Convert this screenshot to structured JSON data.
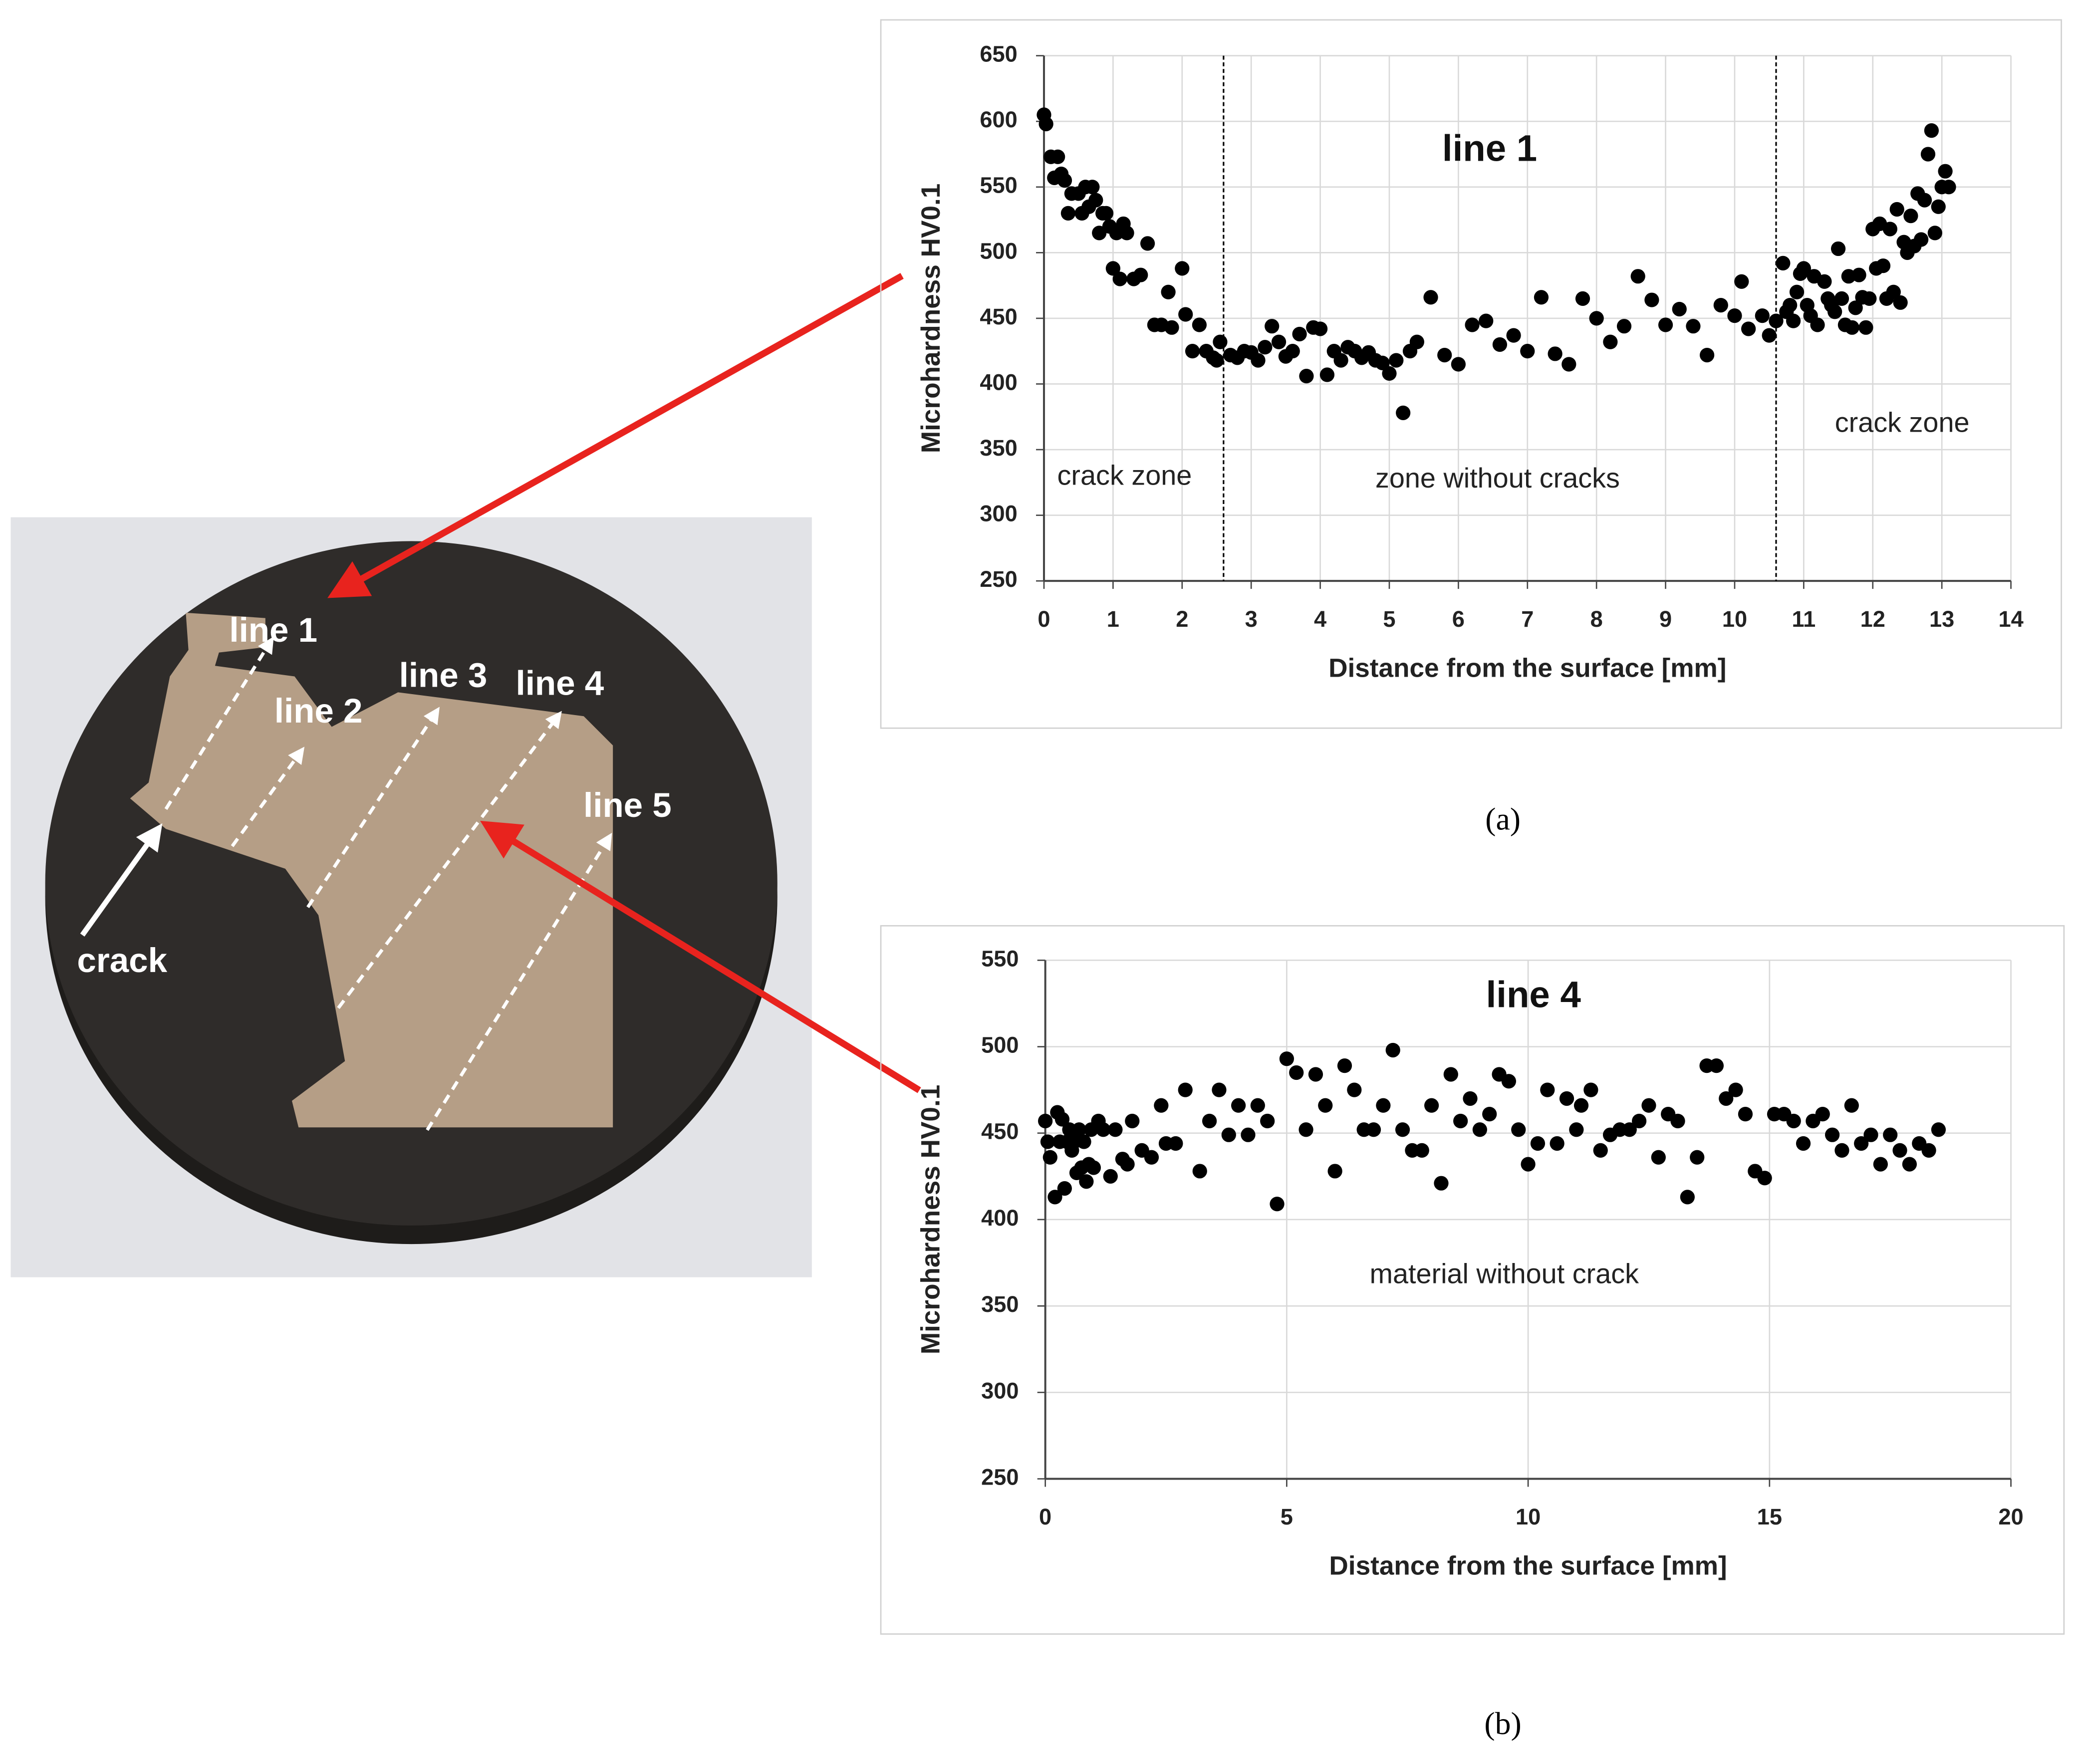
{
  "photo": {
    "labels": [
      "line 1",
      "line 2",
      "line 3",
      "line 4",
      "line 5",
      "crack"
    ]
  },
  "chart_data": [
    {
      "type": "scatter",
      "title": "line 1",
      "panel_label": "(a)",
      "x_label": "Distance from the surface [mm]",
      "y_label": "Microhardness HV0.1",
      "annotations": [
        "crack zone",
        "zone without cracks",
        "crack zone"
      ],
      "zone_boundaries": [
        2.6,
        10.6
      ],
      "xlim": [
        0,
        14
      ],
      "xticks": [
        0,
        1,
        2,
        3,
        4,
        5,
        6,
        7,
        8,
        9,
        10,
        11,
        12,
        13,
        14
      ],
      "ylim": [
        250,
        650
      ],
      "yticks": [
        250,
        300,
        350,
        400,
        450,
        500,
        550,
        600,
        650
      ],
      "grid": true,
      "color": "#000000",
      "x": [
        0,
        0.03,
        0.1,
        0.2,
        0.15,
        0.25,
        0.3,
        0.4,
        0.35,
        0.5,
        0.55,
        0.6,
        0.65,
        0.7,
        0.75,
        0.8,
        0.85,
        0.9,
        0.95,
        1.0,
        1.05,
        1.1,
        1.15,
        1.2,
        1.3,
        1.4,
        1.5,
        1.6,
        1.7,
        1.8,
        1.85,
        2.0,
        2.05,
        2.15,
        2.25,
        2.35,
        2.45,
        2.5,
        2.55,
        2.7,
        2.8,
        2.9,
        3.0,
        3.1,
        3.2,
        3.3,
        3.4,
        3.5,
        3.6,
        3.7,
        3.8,
        3.9,
        4.0,
        4.1,
        4.2,
        4.3,
        4.4,
        4.5,
        4.6,
        4.7,
        4.8,
        4.9,
        5.0,
        5.1,
        5.2,
        5.3,
        5.4,
        5.6,
        5.8,
        6.0,
        6.2,
        6.4,
        6.6,
        6.8,
        7.0,
        7.2,
        7.4,
        7.6,
        7.8,
        8.0,
        8.2,
        8.4,
        8.6,
        8.8,
        9.0,
        9.2,
        9.4,
        9.6,
        9.8,
        10.0,
        10.1,
        10.2,
        10.4,
        10.5,
        10.6,
        10.7,
        10.75,
        10.8,
        10.85,
        10.9,
        10.95,
        11.0,
        11.05,
        11.1,
        11.15,
        11.2,
        11.3,
        11.35,
        11.4,
        11.45,
        11.5,
        11.55,
        11.6,
        11.65,
        11.7,
        11.75,
        11.8,
        11.85,
        11.9,
        11.95,
        12.0,
        12.05,
        12.1,
        12.15,
        12.2,
        12.25,
        12.3,
        12.35,
        12.4,
        12.45,
        12.5,
        12.55,
        12.6,
        12.65,
        12.7,
        12.75,
        12.8,
        12.85,
        12.9,
        12.95,
        13.0,
        13.05,
        13.1
      ],
      "values": [
        605,
        598,
        573,
        573,
        557,
        560,
        555,
        545,
        530,
        545,
        530,
        550,
        535,
        550,
        540,
        515,
        530,
        530,
        520,
        488,
        515,
        480,
        522,
        515,
        480,
        483,
        507,
        445,
        445,
        470,
        443,
        488,
        453,
        425,
        445,
        425,
        420,
        418,
        432,
        422,
        420,
        425,
        424,
        418,
        428,
        444,
        432,
        421,
        425,
        438,
        406,
        443,
        442,
        407,
        425,
        418,
        428,
        425,
        420,
        424,
        418,
        416,
        408,
        418,
        378,
        425,
        432,
        466,
        422,
        415,
        445,
        448,
        430,
        437,
        425,
        466,
        423,
        415,
        465,
        450,
        432,
        444,
        482,
        464,
        445,
        457,
        444,
        422,
        460,
        452,
        478,
        442,
        452,
        437,
        448,
        492,
        455,
        460,
        448,
        470,
        484,
        488,
        460,
        452,
        482,
        445,
        478,
        465,
        460,
        455,
        503,
        465,
        445,
        482,
        443,
        458,
        483,
        466,
        443,
        465,
        518,
        488,
        522,
        490,
        465,
        518,
        470,
        533,
        462,
        508,
        500,
        528,
        505,
        545,
        510,
        540,
        575,
        593,
        515,
        535,
        550,
        562,
        550
      ]
    },
    {
      "type": "scatter",
      "title": "line 4",
      "panel_label": "(b)",
      "x_label": "Distance from the surface [mm]",
      "y_label": "Microhardness HV0.1",
      "annotations": [
        "material without crack"
      ],
      "xlim": [
        0,
        20
      ],
      "xticks": [
        0,
        5,
        10,
        15,
        20
      ],
      "ylim": [
        250,
        550
      ],
      "yticks": [
        250,
        300,
        350,
        400,
        450,
        500,
        550
      ],
      "grid": true,
      "color": "#000000",
      "x": [
        0,
        0.05,
        0.1,
        0.2,
        0.25,
        0.3,
        0.35,
        0.4,
        0.45,
        0.5,
        0.55,
        0.6,
        0.65,
        0.7,
        0.75,
        0.8,
        0.85,
        0.9,
        0.95,
        1.0,
        1.1,
        1.2,
        1.35,
        1.45,
        1.6,
        1.7,
        1.8,
        2.0,
        2.2,
        2.4,
        2.5,
        2.7,
        2.9,
        3.2,
        3.4,
        3.6,
        3.8,
        4.0,
        4.2,
        4.4,
        4.6,
        4.8,
        5.0,
        5.2,
        5.4,
        5.6,
        5.8,
        6.0,
        6.2,
        6.4,
        6.6,
        6.8,
        7.0,
        7.2,
        7.4,
        7.6,
        7.8,
        8.0,
        8.2,
        8.4,
        8.6,
        8.8,
        9.0,
        9.2,
        9.4,
        9.6,
        9.8,
        10.0,
        10.2,
        10.4,
        10.6,
        10.8,
        11.0,
        11.1,
        11.3,
        11.5,
        11.7,
        11.9,
        12.1,
        12.3,
        12.5,
        12.7,
        12.9,
        13.1,
        13.3,
        13.5,
        13.7,
        13.9,
        14.1,
        14.3,
        14.5,
        14.7,
        14.9,
        15.1,
        15.3,
        15.5,
        15.7,
        15.9,
        16.1,
        16.3,
        16.5,
        16.7,
        16.9,
        17.1,
        17.3,
        17.5,
        17.7,
        17.9,
        18.1,
        18.3,
        18.5
      ],
      "values": [
        457,
        445,
        436,
        413,
        462,
        445,
        458,
        418,
        445,
        452,
        440,
        445,
        427,
        452,
        430,
        445,
        422,
        432,
        452,
        430,
        457,
        452,
        425,
        452,
        435,
        432,
        457,
        440,
        436,
        466,
        444,
        444,
        475,
        428,
        457,
        475,
        449,
        466,
        449,
        466,
        457,
        409,
        493,
        485,
        452,
        484,
        466,
        428,
        489,
        475,
        452,
        452,
        466,
        498,
        452,
        440,
        440,
        466,
        421,
        484,
        457,
        470,
        452,
        461,
        484,
        480,
        452,
        432,
        444,
        475,
        444,
        470,
        452,
        466,
        475,
        440,
        449,
        452,
        452,
        457,
        466,
        436,
        461,
        457,
        413,
        436,
        489,
        489,
        470,
        475,
        461,
        428,
        424,
        461,
        461,
        457,
        444,
        457,
        461,
        449,
        440,
        466,
        444,
        449,
        432,
        449,
        440,
        432,
        444,
        440,
        452
      ]
    }
  ]
}
